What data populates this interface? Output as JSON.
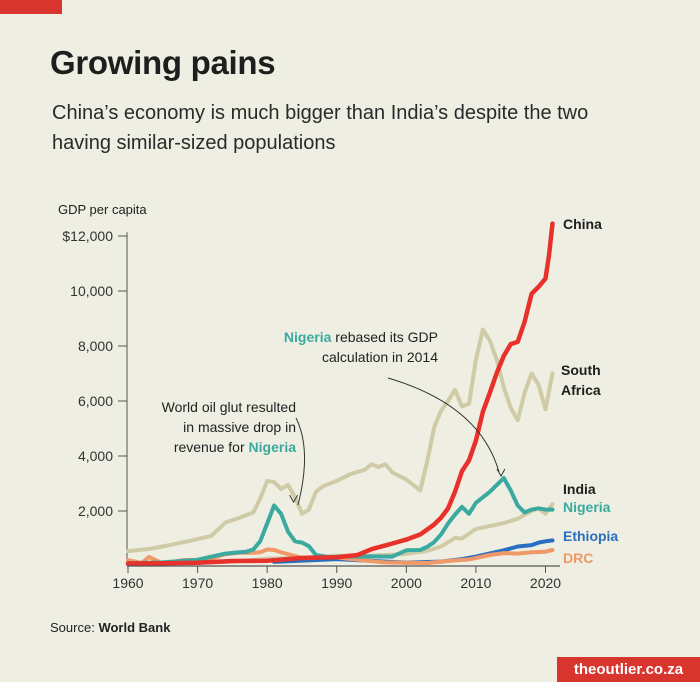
{
  "header": {
    "title": "Growing pains",
    "subtitle": "China’s economy is much bigger than India’s despite the two having similar-sized populations"
  },
  "footer": {
    "source_label": "Source:",
    "source_name": "World Bank",
    "brand": "theoutlier.co.za"
  },
  "chart_data": {
    "type": "line",
    "title": "Growing pains",
    "subtitle": "China’s economy is much bigger than India’s despite the two having similar-sized populations",
    "ylabel": "GDP per capita",
    "xlabel": "",
    "xlim": [
      1960,
      2022
    ],
    "ylim": [
      0,
      12500
    ],
    "x_ticks": [
      1960,
      1970,
      1980,
      1990,
      2000,
      2010,
      2020
    ],
    "x_tick_labels": [
      "1960",
      "1970",
      "1980",
      "1990",
      "2000",
      "2010",
      "2020"
    ],
    "y_ticks": [
      2000,
      4000,
      6000,
      8000,
      10000,
      12000
    ],
    "y_tick_labels": [
      "2,000",
      "4,000",
      "6,000",
      "8,000",
      "10,000",
      "$12,000"
    ],
    "grid": false,
    "legend": "direct labels at line ends (right)",
    "series": [
      {
        "name": "South Africa",
        "color": "#cfcba6",
        "width": 4,
        "x": [
          1960,
          1963,
          1966,
          1969,
          1972,
          1974,
          1976,
          1978,
          1979,
          1980,
          1981,
          1982,
          1983,
          1984,
          1985,
          1986,
          1987,
          1988,
          1990,
          1992,
          1994,
          1995,
          1996,
          1997,
          1998,
          2000,
          2001,
          2002,
          2003,
          2004,
          2005,
          2006,
          2007,
          2008,
          2009,
          2010,
          2011,
          2012,
          2013,
          2014,
          2015,
          2016,
          2017,
          2018,
          2019,
          2020,
          2021
        ],
        "y": [
          540,
          620,
          760,
          920,
          1100,
          1580,
          1750,
          1950,
          2450,
          3100,
          3050,
          2800,
          2950,
          2500,
          1900,
          2050,
          2700,
          2900,
          3100,
          3350,
          3500,
          3700,
          3600,
          3700,
          3400,
          3150,
          2950,
          2750,
          3800,
          5050,
          5650,
          6000,
          6400,
          5800,
          5900,
          7500,
          8600,
          8200,
          7500,
          6500,
          5750,
          5300,
          6300,
          7000,
          6600,
          5700,
          7000
        ]
      },
      {
        "name": "India",
        "color": "#cfcba6",
        "width": 4,
        "x": [
          1960,
          1965,
          1970,
          1975,
          1980,
          1985,
          1990,
          1995,
          2000,
          2003,
          2005,
          2007,
          2008,
          2010,
          2012,
          2014,
          2016,
          2018,
          2019,
          2020,
          2021
        ],
        "y": [
          85,
          120,
          115,
          160,
          270,
          300,
          370,
          375,
          440,
          550,
          710,
          1020,
          1000,
          1350,
          1450,
          1560,
          1720,
          2000,
          2100,
          1900,
          2250
        ]
      },
      {
        "name": "Ethiopia",
        "color": "#2a6ec0",
        "width": 4,
        "x": [
          1981,
          1990,
          2000,
          2005,
          2008,
          2010,
          2012,
          2014,
          2016,
          2018,
          2019,
          2020,
          2021
        ],
        "y": [
          150,
          250,
          125,
          160,
          250,
          340,
          460,
          570,
          710,
          760,
          850,
          900,
          930
        ]
      },
      {
        "name": "DRC",
        "color": "#ef9868",
        "width": 4,
        "x": [
          1960,
          1962,
          1963,
          1965,
          1968,
          1970,
          1972,
          1974,
          1976,
          1978,
          1979,
          1980,
          1981,
          1982,
          1985,
          1988,
          1990,
          1994,
          1997,
          2000,
          2003,
          2006,
          2009,
          2012,
          2014,
          2016,
          2018,
          2020,
          2021
        ],
        "y": [
          210,
          110,
          330,
          90,
          220,
          220,
          280,
          430,
          480,
          480,
          500,
          600,
          580,
          500,
          300,
          330,
          310,
          200,
          130,
          120,
          110,
          180,
          240,
          400,
          470,
          450,
          500,
          520,
          580
        ]
      },
      {
        "name": "Nigeria",
        "color": "#3aaaa0",
        "width": 4,
        "x": [
          1960,
          1965,
          1970,
          1974,
          1976,
          1977,
          1978,
          1979,
          1980,
          1981,
          1982,
          1983,
          1984,
          1985,
          1986,
          1987,
          1989,
          1991,
          1993,
          1995,
          1998,
          2000,
          2002,
          2003,
          2004,
          2005,
          2006,
          2007,
          2008,
          2009,
          2010,
          2011,
          2012,
          2013,
          2014,
          2015,
          2016,
          2017,
          2018,
          2019,
          2020,
          2021
        ],
        "y": [
          100,
          130,
          230,
          450,
          500,
          520,
          600,
          900,
          1550,
          2200,
          1900,
          1250,
          900,
          850,
          720,
          400,
          320,
          350,
          340,
          350,
          340,
          570,
          580,
          700,
          870,
          1150,
          1550,
          1870,
          2150,
          1900,
          2300,
          2500,
          2700,
          2950,
          3200,
          2750,
          2200,
          1950,
          2050,
          2100,
          2050,
          2050
        ]
      },
      {
        "name": "China",
        "color": "#e8312a",
        "width": 4.5,
        "x": [
          1960,
          1965,
          1970,
          1975,
          1980,
          1985,
          1990,
          1993,
          1995,
          1998,
          2000,
          2002,
          2004,
          2005,
          2006,
          2007,
          2008,
          2009,
          2010,
          2011,
          2012,
          2013,
          2014,
          2015,
          2016,
          2017,
          2018,
          2019,
          2020,
          2020.5,
          2021
        ],
        "y": [
          90,
          100,
          115,
          180,
          190,
          290,
          320,
          400,
          610,
          820,
          960,
          1150,
          1510,
          1760,
          2100,
          2700,
          3450,
          3840,
          4560,
          5610,
          6300,
          7020,
          7640,
          8070,
          8150,
          8880,
          9900,
          10150,
          10450,
          11300,
          12450
        ]
      }
    ],
    "line_end_labels": [
      {
        "text": "China",
        "color": "#1e1e1e"
      },
      {
        "text": "South Africa",
        "color": "#1e1e1e"
      },
      {
        "text": "India",
        "color": "#1e1e1e"
      },
      {
        "text": "Nigeria",
        "color": "#3aaaa0"
      },
      {
        "text": "Ethiopia",
        "color": "#2a6ec0"
      },
      {
        "text": "DRC",
        "color": "#ef9868"
      }
    ],
    "annotations": [
      {
        "lines": [
          "World oil glut resulted",
          "in massive drop in",
          "revenue for Nigeria"
        ],
        "highlight": "Nigeria",
        "points_to": {
          "x": 1983.8,
          "y": 2250
        }
      },
      {
        "lines": [
          "Nigeria rebased its GDP",
          "calculation in 2014"
        ],
        "highlight": "Nigeria",
        "points_to": {
          "x": 2013.6,
          "y": 3200
        }
      }
    ]
  }
}
